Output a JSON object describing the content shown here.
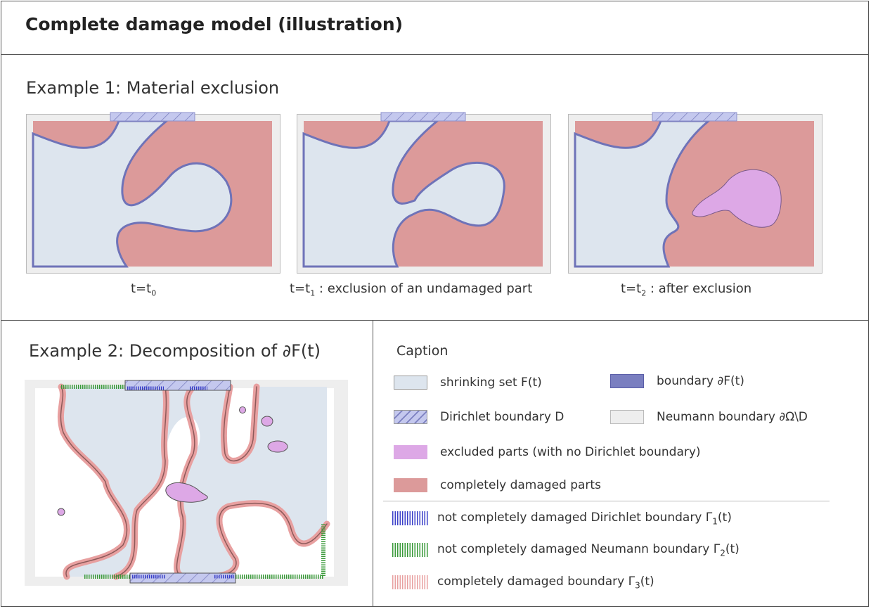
{
  "title": "Complete damage model (illustration)",
  "example1": {
    "heading": "Example 1: Material exclusion",
    "panels": [
      {
        "label_main": "t=t",
        "label_sub": "0",
        "label_rest": ""
      },
      {
        "label_main": "t=t",
        "label_sub": "1",
        "label_rest": " : exclusion of an undamaged part"
      },
      {
        "label_main": "t=t",
        "label_sub": "2",
        "label_rest": " : after exclusion"
      }
    ]
  },
  "example2": {
    "heading": "Example 2: Decomposition of ∂F(t)"
  },
  "caption": {
    "heading": "Caption",
    "items": {
      "shrinking": "shrinking set F(t)",
      "boundary": "boundary ∂F(t)",
      "dirichlet": "Dirichlet boundary D",
      "neumann": "Neumann boundary ∂Ω\\D",
      "excluded": "excluded parts (with no Dirichlet boundary)",
      "damaged": "completely damaged parts",
      "gamma1_text": "not completely damaged Dirichlet boundary Γ",
      "gamma1_sub": "1",
      "gamma1_tail": "(t)",
      "gamma2_text": "not completely damaged Neumann boundary Γ",
      "gamma2_sub": "2",
      "gamma2_tail": "(t)",
      "gamma3_text": "completely damaged boundary Γ",
      "gamma3_sub": "3",
      "gamma3_tail": "(t)"
    }
  },
  "colors": {
    "shrinking": "#dde5ee",
    "boundary": "#6f73b8",
    "dirichlet": "#c4c8ee",
    "neumann": "#eeeeee",
    "excluded": "#dda8e6",
    "damaged": "#dc9a9a",
    "gamma1": "#3a3fc8",
    "gamma2": "#3a9a3a",
    "gamma3": "#e8a0a0"
  }
}
